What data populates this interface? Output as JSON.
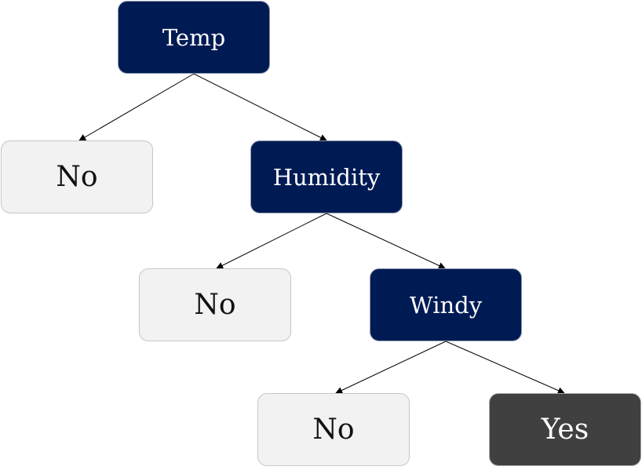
{
  "nodes": {
    "temp": {
      "label": "Temp"
    },
    "no1": {
      "label": "No"
    },
    "humidity": {
      "label": "Humidity"
    },
    "no2": {
      "label": "No"
    },
    "windy": {
      "label": "Windy"
    },
    "no3": {
      "label": "No"
    },
    "yes": {
      "label": "Yes"
    }
  },
  "edges": [
    {
      "from": "temp",
      "to": "no1"
    },
    {
      "from": "temp",
      "to": "humidity"
    },
    {
      "from": "humidity",
      "to": "no2"
    },
    {
      "from": "humidity",
      "to": "windy"
    },
    {
      "from": "windy",
      "to": "no3"
    },
    {
      "from": "windy",
      "to": "yes"
    }
  ],
  "colors": {
    "decision_fill": "#001b54",
    "leaf_no_fill": "#f2f2f2",
    "leaf_yes_fill": "#404040",
    "edge": "#000000"
  }
}
